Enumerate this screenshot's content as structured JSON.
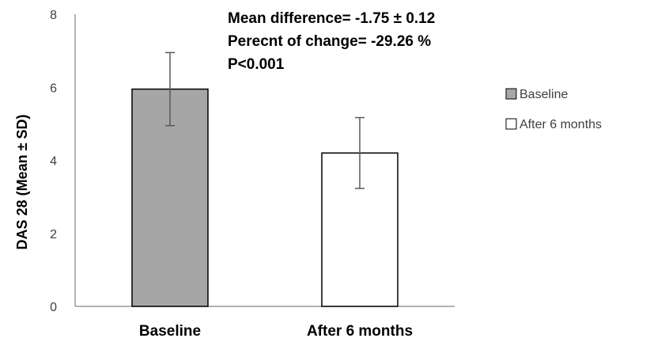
{
  "chart_data": {
    "type": "bar",
    "categories": [
      "Baseline",
      "After 6 months"
    ],
    "values": [
      5.95,
      4.2
    ],
    "errors": [
      1.0,
      0.97
    ],
    "colors": [
      "#a6a6a6",
      "#ffffff"
    ],
    "ylabel": "DAS 28 (Mean ± SD)",
    "ylim": [
      0,
      8
    ],
    "yticks": [
      "0",
      "2",
      "4",
      "6",
      "8"
    ],
    "grid": false,
    "legend": {
      "placement": "right",
      "entries": [
        "Baseline",
        "After 6 months"
      ]
    },
    "annotations": [
      "Mean difference= -1.75 ± 0.12",
      "Perecnt of change= -29.26 %",
      "P<0.001"
    ]
  }
}
